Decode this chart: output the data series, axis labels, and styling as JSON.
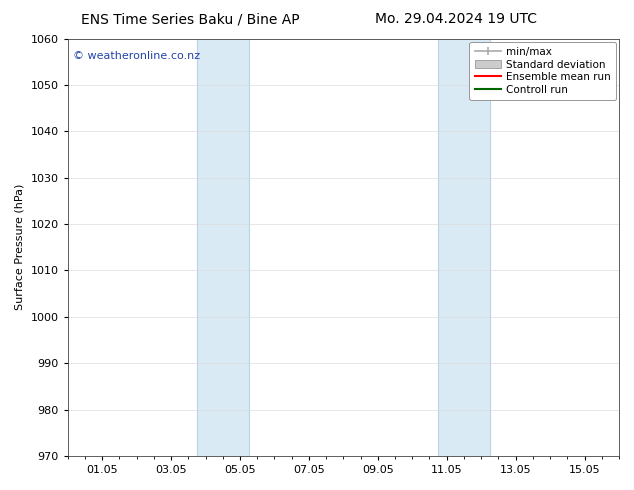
{
  "title_left": "ENS Time Series Baku / Bine AP",
  "title_right": "Mo. 29.04.2024 19 UTC",
  "ylabel": "Surface Pressure (hPa)",
  "xlabel": "",
  "ylim": [
    970,
    1060
  ],
  "yticks": [
    970,
    980,
    990,
    1000,
    1010,
    1020,
    1030,
    1040,
    1050,
    1060
  ],
  "xtick_labels": [
    "01.05",
    "03.05",
    "05.05",
    "07.05",
    "09.05",
    "11.05",
    "13.05",
    "15.05"
  ],
  "xtick_positions": [
    1,
    3,
    5,
    7,
    9,
    11,
    13,
    15
  ],
  "xlim": [
    0,
    16
  ],
  "shaded_bands": [
    {
      "x_start": 3.75,
      "x_end": 5.25,
      "color": "#daeaf5"
    },
    {
      "x_start": 10.75,
      "x_end": 12.25,
      "color": "#daeaf5"
    }
  ],
  "vertical_lines": [
    {
      "x": 3.75,
      "color": "#b8d4e8",
      "lw": 0.8
    },
    {
      "x": 5.25,
      "color": "#b8d4e8",
      "lw": 0.8
    },
    {
      "x": 10.75,
      "color": "#b8d4e8",
      "lw": 0.8
    },
    {
      "x": 12.25,
      "color": "#b8d4e8",
      "lw": 0.8
    }
  ],
  "watermark": "© weatheronline.co.nz",
  "watermark_color": "#2244aa",
  "watermark_fontsize": 8,
  "legend_entries": [
    {
      "label": "min/max",
      "color": "#aaaaaa",
      "type": "minmax"
    },
    {
      "label": "Standard deviation",
      "color": "#cccccc",
      "type": "band"
    },
    {
      "label": "Ensemble mean run",
      "color": "#ff0000",
      "type": "line"
    },
    {
      "label": "Controll run",
      "color": "#006600",
      "type": "line"
    }
  ],
  "title_fontsize": 10,
  "axis_label_fontsize": 8,
  "tick_fontsize": 8,
  "background_color": "#ffffff",
  "plot_bg_color": "#ffffff",
  "grid_color": "#dddddd",
  "spine_color": "#444444"
}
